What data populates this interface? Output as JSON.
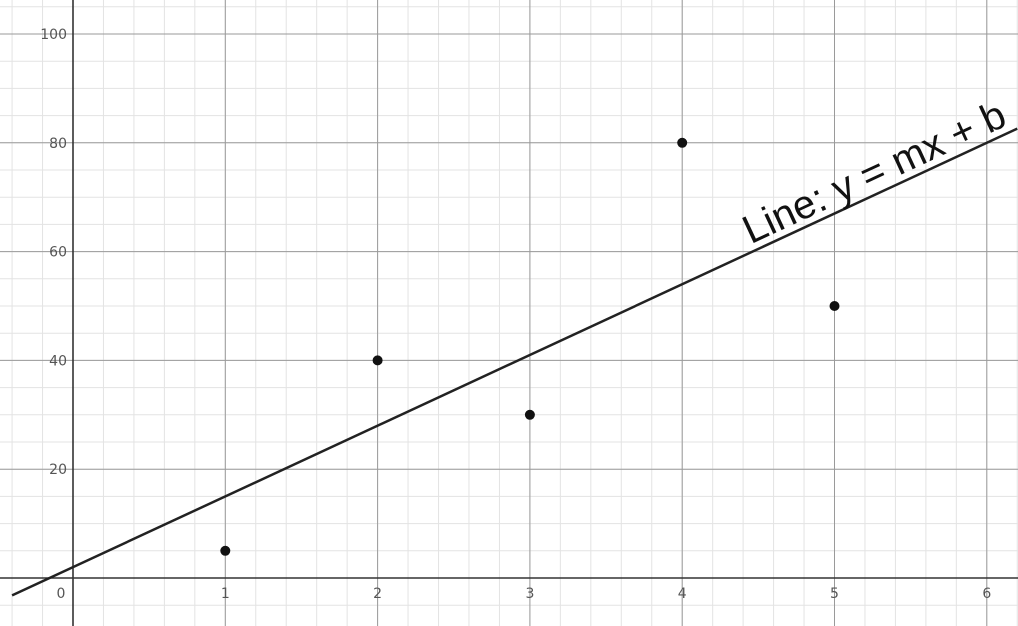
{
  "chart_data": {
    "type": "scatter",
    "title": "",
    "xlabel": "",
    "ylabel": "",
    "xlim": [
      -0.4,
      6.2
    ],
    "ylim": [
      -8.5,
      105
    ],
    "grid": true,
    "x_ticks": [
      0,
      1,
      2,
      3,
      4,
      5,
      6
    ],
    "y_ticks": [
      20,
      40,
      60,
      80,
      100
    ],
    "x_tick_labels": [
      "0",
      "1",
      "2",
      "3",
      "4",
      "5",
      "6"
    ],
    "y_tick_labels": [
      "20",
      "40",
      "60",
      "80",
      "100"
    ],
    "points": [
      {
        "x": 1,
        "y": 5
      },
      {
        "x": 2,
        "y": 40
      },
      {
        "x": 3,
        "y": 30
      },
      {
        "x": 4,
        "y": 80
      },
      {
        "x": 5,
        "y": 50
      }
    ],
    "line": {
      "slope": 13,
      "intercept": 2
    },
    "annotation": "Line: y = mx + b",
    "colors": {
      "points": "#111111",
      "line": "#222222",
      "axis": "#333333",
      "grid_major": "#9a9a9a",
      "grid_minor": "#e3e3e3"
    }
  }
}
